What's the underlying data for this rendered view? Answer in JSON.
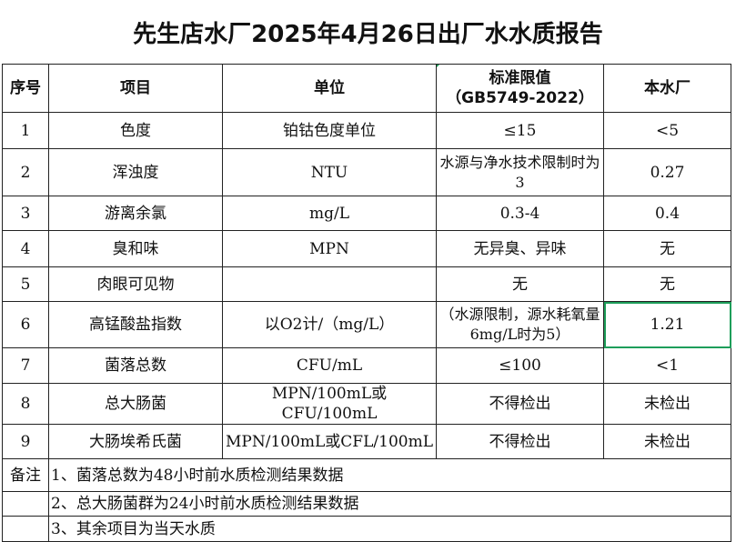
{
  "title": "先生店水厂2025年4月26日出厂水水质报告",
  "headers": [
    "序号",
    "项目",
    "单位",
    "标准限值\n（GB5749-2022）",
    "本水厂"
  ],
  "header_standard_line1": "标准限值",
  "header_standard_line2": "（GB5749-2022）",
  "rows": [
    {
      "no": "1",
      "item": "色度",
      "unit": "铂钴色度单位",
      "limit": "≤15",
      "value": "<5"
    },
    {
      "no": "2",
      "item": "浑浊度",
      "unit": "NTU",
      "limit": "水源与净水技术限制时为3",
      "value": "0.27"
    },
    {
      "no": "3",
      "item": "游离余氯",
      "unit": "mg/L",
      "limit": "0.3-4",
      "value": "0.4"
    },
    {
      "no": "4",
      "item": "臭和味",
      "unit": "MPN",
      "limit": "无异臭、异味",
      "value": "无"
    },
    {
      "no": "5",
      "item": "肉眼可见物",
      "unit": "",
      "limit": "无",
      "value": "无"
    },
    {
      "no": "6",
      "item": "高锰酸盐指数",
      "unit": "以O2计/（mg/L）",
      "limit": "（水源限制，源水耗氧量6mg/L时为5）",
      "value": "1.21"
    },
    {
      "no": "7",
      "item": "菌落总数",
      "unit": "CFU/mL",
      "limit": "≤100",
      "value": "<1"
    },
    {
      "no": "8",
      "item": "总大肠菌",
      "unit": "MPN/100mL或CFU/100mL",
      "limit": "不得检出",
      "value": "未检出"
    },
    {
      "no": "9",
      "item": "大肠埃希氏菌",
      "unit": "MPN/100mL或CFL/100mL",
      "limit": "不得检出",
      "value": "未检出"
    }
  ],
  "notes_label": "备注",
  "notes": [
    "1、菌落总数为48小时前水质检测结果数据",
    "2、总大肠菌群为24小时前水质检测结果数据",
    "3、其余项目为当天水质"
  ],
  "colors": {
    "selection": "#1e9e5a"
  }
}
